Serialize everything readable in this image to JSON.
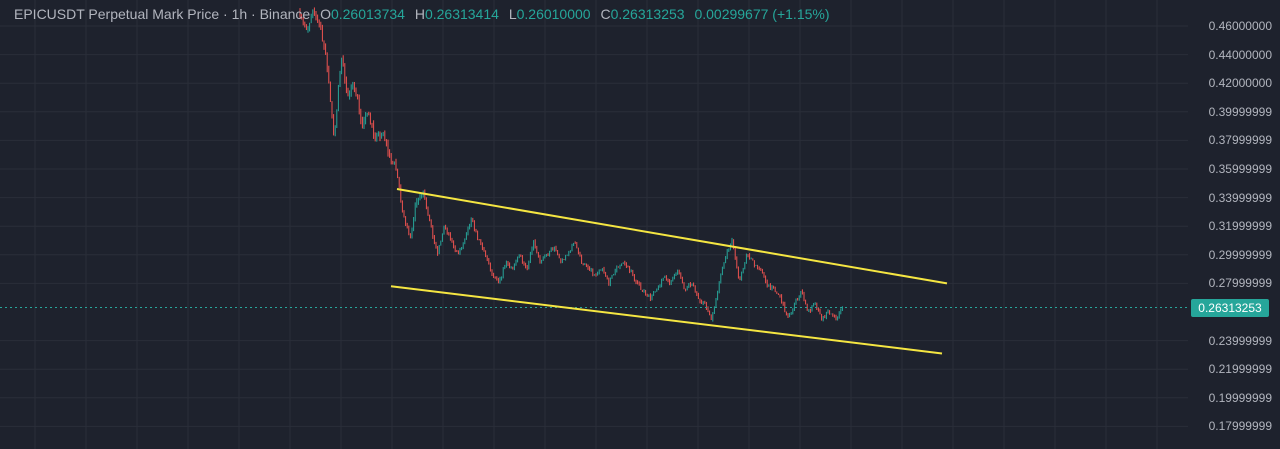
{
  "legend": {
    "symbol": "EPICUSDT Perpetual Mark Price · 1h · Binance",
    "o_key": "O",
    "o": "0.26013734",
    "h_key": "H",
    "h": "0.26313414",
    "l_key": "L",
    "l": "0.26010000",
    "c_key": "C",
    "c": "0.26313253",
    "change": "0.00299677 (+1.15%)"
  },
  "price_axis": {
    "ticks": [
      "0.46000000",
      "0.44000000",
      "0.42000000",
      "0.39999999",
      "0.37999999",
      "0.35999999",
      "0.33999999",
      "0.31999999",
      "0.29999999",
      "0.27999999",
      "0.23999999",
      "0.21999999",
      "0.19999999",
      "0.17999999"
    ],
    "current_price": "0.26313253"
  },
  "colors": {
    "background": "#1e222d",
    "grid": "#2a2e39",
    "up": "#26a69a",
    "down": "#ef5350",
    "trendline": "#f5e642",
    "price_line": "#26a69a"
  },
  "chart_data": {
    "type": "candlestick",
    "title": "EPICUSDT Perpetual Mark Price",
    "interval": "1h",
    "exchange": "Binance",
    "ylim": [
      0.165,
      0.47
    ],
    "last_price": 0.26313253,
    "series": [
      {
        "name": "price_path",
        "values": [
          0.47,
          0.455,
          0.47,
          0.46,
          0.43,
          0.38,
          0.44,
          0.41,
          0.42,
          0.39,
          0.4,
          0.38,
          0.385,
          0.37,
          0.36,
          0.33,
          0.31,
          0.34,
          0.345,
          0.32,
          0.3,
          0.32,
          0.31,
          0.3,
          0.31,
          0.325,
          0.31,
          0.3,
          0.285,
          0.28,
          0.295,
          0.29,
          0.3,
          0.29,
          0.31,
          0.295,
          0.3,
          0.305,
          0.295,
          0.3,
          0.31,
          0.295,
          0.29,
          0.285,
          0.29,
          0.28,
          0.29,
          0.295,
          0.29,
          0.28,
          0.275,
          0.27,
          0.275,
          0.285,
          0.28,
          0.29,
          0.275,
          0.28,
          0.27,
          0.265,
          0.255,
          0.28,
          0.3,
          0.31,
          0.28,
          0.3,
          0.295,
          0.29,
          0.28,
          0.275,
          0.27,
          0.255,
          0.265,
          0.275,
          0.26,
          0.265,
          0.255,
          0.26,
          0.255,
          0.263
        ]
      }
    ],
    "trendlines": [
      {
        "name": "upper",
        "start_price": 0.346,
        "end_price": 0.28
      },
      {
        "name": "lower",
        "start_price": 0.278,
        "end_price": 0.231
      }
    ]
  }
}
